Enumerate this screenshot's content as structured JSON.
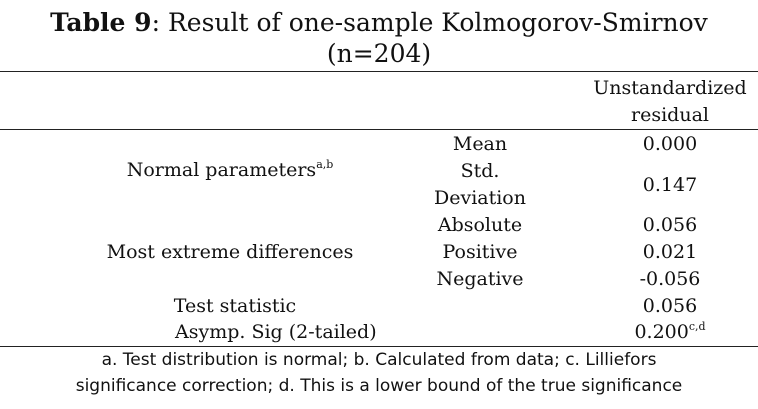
{
  "title": {
    "label": "Table 9",
    "text": ": Result of one-sample Kolmogorov-Smirnov",
    "line2": "(n=204)"
  },
  "header": {
    "col_line1": "Unstandardized",
    "col_line2": "residual"
  },
  "rows": {
    "normal_parameters": {
      "label": "Normal parameters",
      "sup": "a,b"
    },
    "mean": {
      "sub": "Mean",
      "value": "0.000"
    },
    "std": {
      "sub_line1": "Std.",
      "sub_line2": "Deviation",
      "value": "0.147"
    },
    "most_extreme": {
      "label": "Most extreme differences"
    },
    "absolute": {
      "sub": "Absolute",
      "value": "0.056"
    },
    "positive": {
      "sub": "Positive",
      "value": "0.021"
    },
    "negative": {
      "sub": "Negative",
      "value": "-0.056"
    },
    "test_statistic": {
      "label": "Test statistic",
      "value": "0.056"
    },
    "asymp_sig": {
      "label": "Asymp. Sig (2-tailed)",
      "value": "0.200",
      "sup": "c,d"
    }
  },
  "footnote": {
    "line1": "a. Test distribution is normal; b. Calculated from data; c. Lilliefors",
    "line2": "significance correction; d. This is a lower bound of the true significance"
  }
}
